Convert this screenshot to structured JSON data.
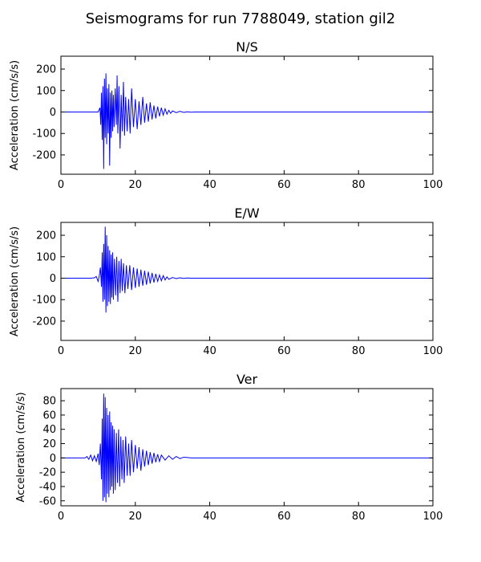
{
  "figure": {
    "title": "Seismograms for run 7788049, station gil2"
  },
  "chart_data": [
    {
      "type": "line",
      "title": "N/S",
      "xlabel": "",
      "ylabel": "Acceleration (cm/s/s)",
      "xlim": [
        0,
        100
      ],
      "ylim": [
        -290,
        260
      ],
      "x_ticks": [
        0,
        20,
        40,
        60,
        80,
        100
      ],
      "y_ticks": [
        -200,
        -100,
        0,
        100,
        200
      ],
      "grid": false,
      "line_color": "#0000ff",
      "series": [
        {
          "x": [
            0,
            10.0,
            10.5,
            10.7,
            10.9,
            11.1,
            11.3,
            11.5,
            11.7,
            11.9,
            12.1,
            12.3,
            12.5,
            12.7,
            12.9,
            13.1,
            13.3,
            13.5,
            13.7,
            13.9,
            14.1,
            14.3,
            14.6,
            14.9,
            15.1,
            15.3,
            15.6,
            15.9,
            16.2,
            16.5,
            16.8,
            17.1,
            17.4,
            17.8,
            18.2,
            18.6,
            19.0,
            19.5,
            20.0,
            20.5,
            21.0,
            21.5,
            22.0,
            22.5,
            23.0,
            23.5,
            24.0,
            24.5,
            25.0,
            25.5,
            26.0,
            26.5,
            27.0,
            27.5,
            28.0,
            28.5,
            29.0,
            29.5,
            30.0,
            31.0,
            32.0,
            33.0,
            34.0,
            35.0,
            36.0,
            100
          ],
          "y": [
            0,
            0,
            20,
            -60,
            90,
            -130,
            120,
            -265,
            155,
            -120,
            180,
            -150,
            110,
            -100,
            130,
            -250,
            90,
            -120,
            100,
            -90,
            80,
            -70,
            110,
            -60,
            170,
            -100,
            120,
            -170,
            80,
            -90,
            140,
            -110,
            70,
            -90,
            60,
            -100,
            110,
            -70,
            60,
            -80,
            50,
            -60,
            70,
            -50,
            40,
            -45,
            45,
            -35,
            30,
            -30,
            25,
            -20,
            20,
            -15,
            15,
            -10,
            8,
            -6,
            5,
            -3,
            3,
            -2,
            1,
            -1,
            0,
            0
          ]
        }
      ]
    },
    {
      "type": "line",
      "title": "E/W",
      "xlabel": "",
      "ylabel": "Acceleration (cm/s/s)",
      "xlim": [
        0,
        100
      ],
      "ylim": [
        -290,
        260
      ],
      "x_ticks": [
        0,
        20,
        40,
        60,
        80,
        100
      ],
      "y_ticks": [
        -200,
        -100,
        0,
        100,
        200
      ],
      "grid": false,
      "line_color": "#0000ff",
      "series": [
        {
          "x": [
            0,
            8.0,
            9.0,
            9.5,
            10.0,
            10.3,
            10.6,
            10.9,
            11.1,
            11.3,
            11.5,
            11.7,
            11.9,
            12.1,
            12.3,
            12.5,
            12.7,
            12.9,
            13.1,
            13.3,
            13.5,
            13.7,
            13.9,
            14.1,
            14.4,
            14.7,
            15.0,
            15.3,
            15.6,
            15.9,
            16.2,
            16.5,
            16.8,
            17.2,
            17.6,
            18.0,
            18.5,
            19.0,
            19.5,
            20.0,
            20.5,
            21.0,
            21.5,
            22.0,
            22.5,
            23.0,
            23.5,
            24.0,
            24.5,
            25.0,
            25.5,
            26.0,
            26.5,
            27.0,
            27.5,
            28.0,
            28.5,
            29.0,
            30.0,
            31.0,
            32.0,
            33.0,
            34.0,
            35.0,
            100
          ],
          "y": [
            0,
            0,
            2,
            8,
            -15,
            10,
            50,
            -40,
            120,
            -110,
            160,
            -100,
            240,
            -160,
            200,
            -130,
            150,
            -110,
            130,
            -120,
            110,
            -90,
            120,
            -100,
            90,
            -80,
            100,
            -110,
            80,
            -70,
            90,
            -60,
            70,
            -70,
            60,
            -50,
            60,
            -55,
            50,
            -45,
            45,
            -40,
            40,
            -35,
            35,
            -30,
            30,
            -25,
            25,
            -20,
            20,
            -15,
            15,
            -12,
            12,
            -8,
            6,
            -5,
            3,
            -2,
            2,
            -1,
            1,
            0,
            0
          ]
        }
      ]
    },
    {
      "type": "line",
      "title": "Ver",
      "xlabel": "",
      "ylabel": "Acceleration (cm/s/s)",
      "xlim": [
        0,
        100
      ],
      "ylim": [
        -67,
        97
      ],
      "x_ticks": [
        0,
        20,
        40,
        60,
        80,
        100
      ],
      "y_ticks": [
        -60,
        -40,
        -20,
        0,
        20,
        40,
        60,
        80
      ],
      "grid": false,
      "line_color": "#0000ff",
      "series": [
        {
          "x": [
            0,
            6.5,
            7.0,
            7.5,
            8.0,
            8.5,
            9.0,
            9.5,
            10.0,
            10.3,
            10.6,
            10.9,
            11.1,
            11.3,
            11.5,
            11.7,
            11.9,
            12.1,
            12.3,
            12.5,
            12.7,
            12.9,
            13.1,
            13.3,
            13.5,
            13.7,
            13.9,
            14.1,
            14.3,
            14.6,
            14.9,
            15.2,
            15.5,
            15.8,
            16.1,
            16.4,
            16.7,
            17.0,
            17.4,
            17.8,
            18.2,
            18.6,
            19.0,
            19.5,
            20.0,
            20.5,
            21.0,
            21.5,
            22.0,
            22.5,
            23.0,
            23.5,
            24.0,
            24.5,
            25.0,
            25.5,
            26.0,
            26.5,
            27.0,
            28.0,
            29.0,
            30.0,
            31.0,
            32.0,
            33.0,
            34.0,
            35.0,
            100
          ],
          "y": [
            0,
            0,
            2,
            -2,
            4,
            -4,
            3,
            -5,
            6,
            -10,
            20,
            -30,
            55,
            -60,
            90,
            -55,
            85,
            -62,
            70,
            -50,
            60,
            -55,
            65,
            -45,
            50,
            -40,
            45,
            -50,
            40,
            -45,
            35,
            -35,
            40,
            -40,
            30,
            -30,
            25,
            -35,
            30,
            -25,
            20,
            -25,
            25,
            -20,
            18,
            -15,
            15,
            -18,
            12,
            -12,
            10,
            -10,
            8,
            -8,
            7,
            -6,
            5,
            -5,
            4,
            -3,
            3,
            -2,
            2,
            -1,
            1,
            0.5,
            0,
            0
          ]
        }
      ]
    }
  ]
}
